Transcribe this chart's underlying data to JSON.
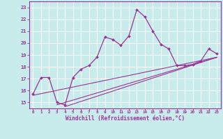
{
  "xlabel": "Windchill (Refroidissement éolien,°C)",
  "background_color": "#c8ecec",
  "line_color": "#993399",
  "axis_line_color": "#993399",
  "grid_color": "#aadddd",
  "xlim": [
    -0.5,
    23.5
  ],
  "ylim": [
    14.5,
    23.5
  ],
  "xticks": [
    0,
    1,
    2,
    3,
    4,
    5,
    6,
    7,
    8,
    9,
    10,
    11,
    12,
    13,
    14,
    15,
    16,
    17,
    18,
    19,
    20,
    21,
    22,
    23
  ],
  "yticks": [
    15,
    16,
    17,
    18,
    19,
    20,
    21,
    22,
    23
  ],
  "line1_x": [
    0,
    1,
    2,
    3,
    4,
    5,
    6,
    7,
    8,
    9,
    10,
    11,
    12,
    13,
    14,
    15,
    16,
    17,
    18,
    19,
    20,
    21,
    22,
    23
  ],
  "line1_y": [
    15.7,
    17.1,
    17.1,
    15.0,
    14.8,
    17.1,
    17.8,
    18.1,
    18.8,
    20.5,
    20.3,
    19.8,
    20.6,
    22.8,
    22.2,
    21.0,
    19.9,
    19.5,
    18.1,
    18.1,
    18.2,
    18.5,
    19.5,
    19.1
  ],
  "line2_x": [
    0,
    23
  ],
  "line2_y": [
    15.6,
    18.8
  ],
  "line3_x": [
    3,
    23
  ],
  "line3_y": [
    14.8,
    18.8
  ],
  "line4_x": [
    4,
    23
  ],
  "line4_y": [
    14.65,
    18.8
  ]
}
